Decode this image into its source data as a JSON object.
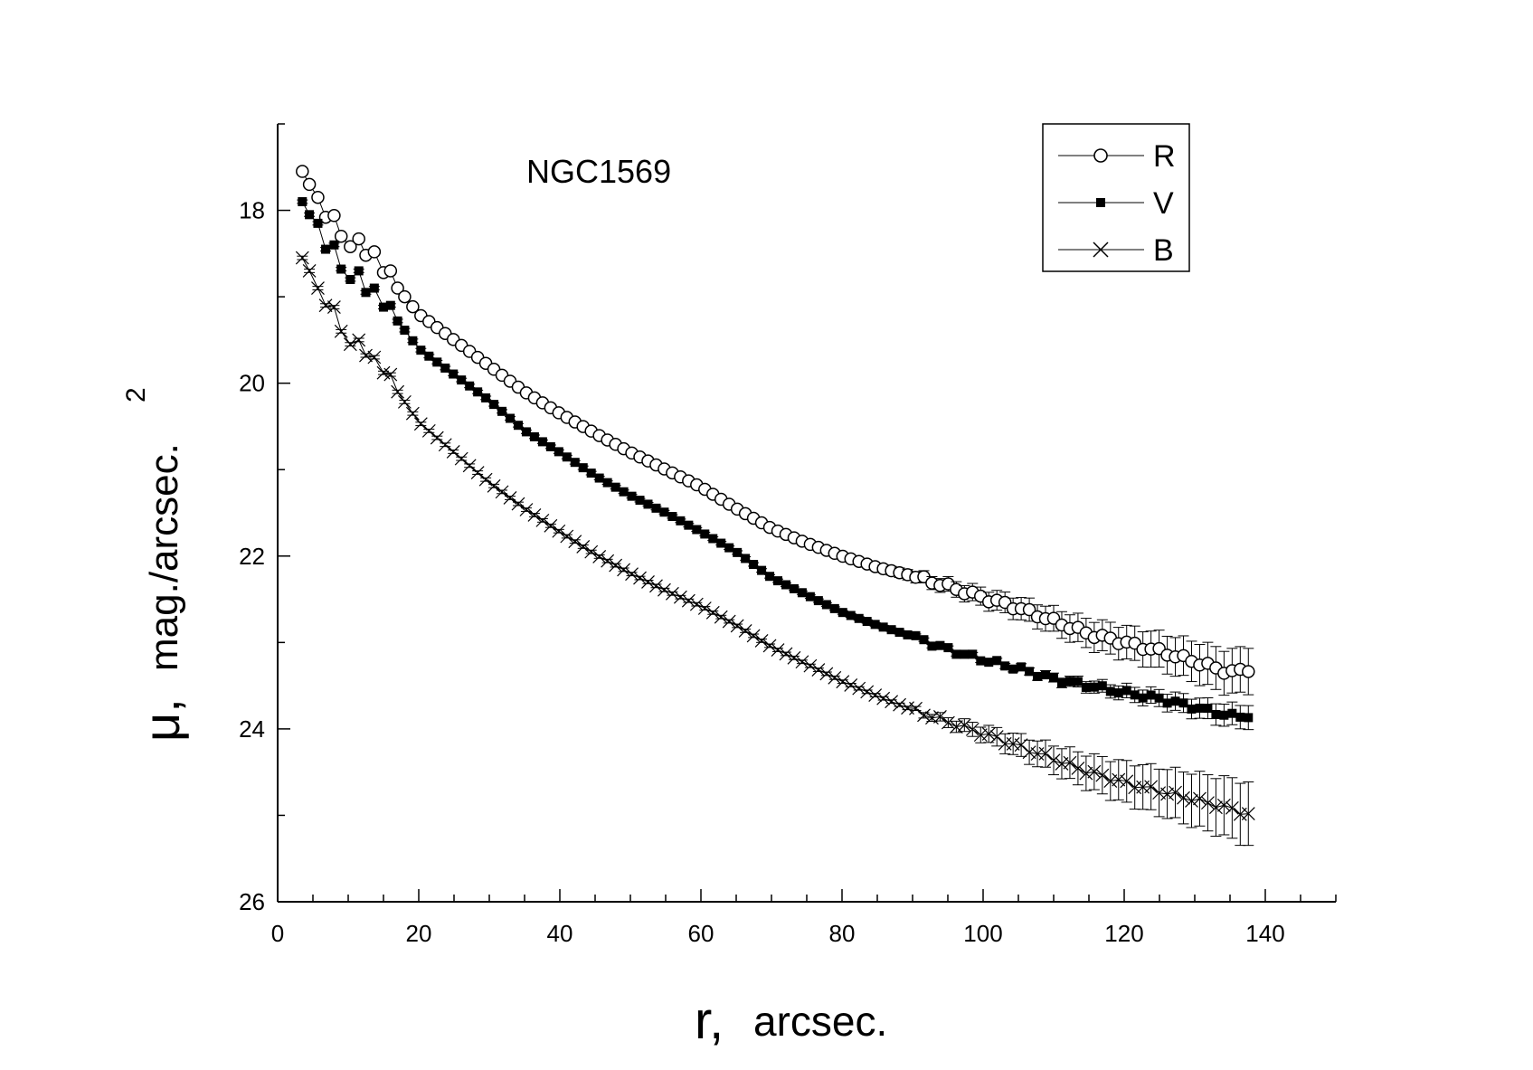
{
  "chart_data": {
    "type": "scatter",
    "title": "",
    "annotation": "NGC1569",
    "xlabel_main": "r,",
    "xlabel_rest": "arcsec.",
    "ylabel_main": "μ,",
    "ylabel_rest": "mag./arcsec.",
    "ylabel_exp": "2",
    "xlim": [
      0,
      150
    ],
    "ylim": [
      26,
      17
    ],
    "y_inverted": true,
    "xticks": [
      0,
      20,
      40,
      60,
      80,
      100,
      120,
      140
    ],
    "yticks": [
      18,
      20,
      22,
      24,
      26
    ],
    "legend_position": "top-right",
    "series": [
      {
        "name": "R",
        "marker": "open-circle",
        "anchors_r": [
          3.5,
          4.5,
          5.7,
          6.8,
          8,
          9,
          10.3,
          11.5,
          12.5,
          13.7,
          15,
          16,
          17,
          20,
          25,
          30,
          35,
          40,
          45,
          50,
          55,
          60,
          65,
          70,
          75,
          80,
          85,
          90,
          95,
          100,
          105,
          110,
          115,
          120,
          125,
          130,
          135,
          138
        ],
        "anchors_mu": [
          17.55,
          17.7,
          17.85,
          18.08,
          18.06,
          18.3,
          18.42,
          18.33,
          18.52,
          18.48,
          18.72,
          18.7,
          18.9,
          19.2,
          19.5,
          19.8,
          20.1,
          20.35,
          20.58,
          20.8,
          21.0,
          21.2,
          21.45,
          21.68,
          21.85,
          22.0,
          22.13,
          22.23,
          22.35,
          22.48,
          22.6,
          22.75,
          22.9,
          23.0,
          23.1,
          23.22,
          23.35,
          23.3
        ],
        "error_start_r": 80,
        "error_end": 0.25
      },
      {
        "name": "V",
        "marker": "filled-square",
        "anchors_r": [
          3.5,
          4.5,
          5.7,
          6.8,
          8,
          9,
          10.3,
          11.5,
          12.5,
          13.7,
          15,
          16,
          17,
          20,
          25,
          30,
          35,
          40,
          45,
          50,
          55,
          60,
          65,
          70,
          75,
          80,
          85,
          90,
          95,
          100,
          105,
          110,
          115,
          120,
          125,
          130,
          135,
          138
        ],
        "anchors_mu": [
          17.9,
          18.05,
          18.15,
          18.45,
          18.4,
          18.68,
          18.8,
          18.7,
          18.95,
          18.9,
          19.12,
          19.1,
          19.28,
          19.6,
          19.9,
          20.2,
          20.55,
          20.8,
          21.07,
          21.3,
          21.5,
          21.72,
          21.95,
          22.25,
          22.45,
          22.65,
          22.8,
          22.93,
          23.08,
          23.2,
          23.3,
          23.42,
          23.5,
          23.58,
          23.65,
          23.75,
          23.85,
          23.85
        ],
        "error_start_r": 100,
        "error_end": 0.12
      },
      {
        "name": "B",
        "marker": "cross",
        "anchors_r": [
          3.5,
          4.5,
          5.7,
          6.8,
          8,
          9,
          10.3,
          11.5,
          12.5,
          13.7,
          15,
          16,
          17,
          20,
          25,
          30,
          35,
          40,
          45,
          50,
          55,
          60,
          65,
          70,
          75,
          80,
          85,
          90,
          95,
          100,
          105,
          110,
          115,
          120,
          125,
          130,
          135,
          138
        ],
        "anchors_mu": [
          18.55,
          18.7,
          18.9,
          19.1,
          19.12,
          19.4,
          19.55,
          19.5,
          19.68,
          19.7,
          19.88,
          19.9,
          20.1,
          20.45,
          20.8,
          21.15,
          21.45,
          21.72,
          21.98,
          22.2,
          22.4,
          22.58,
          22.8,
          23.05,
          23.25,
          23.45,
          23.62,
          23.78,
          23.92,
          24.05,
          24.2,
          24.35,
          24.5,
          24.62,
          24.72,
          24.82,
          24.92,
          25.0
        ],
        "error_start_r": 90,
        "error_end": 0.35
      }
    ]
  }
}
